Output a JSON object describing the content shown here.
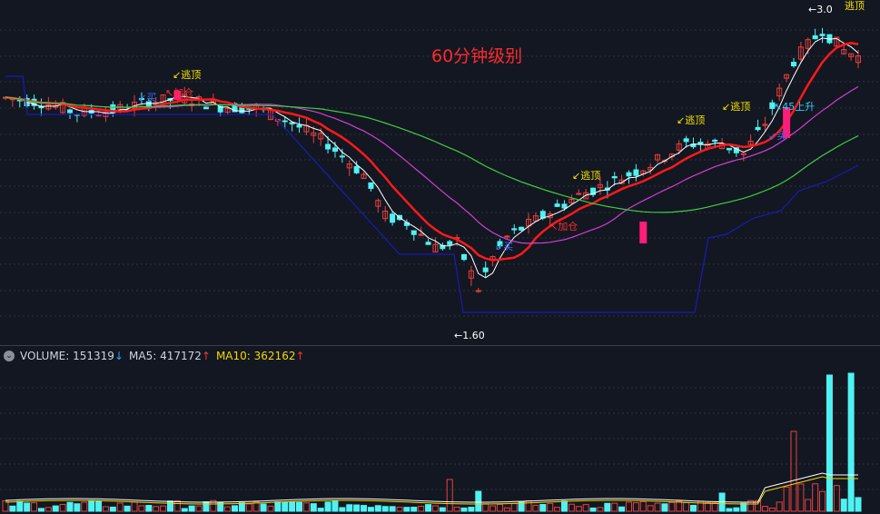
{
  "chart_data": [
    {
      "type": "candlestick",
      "title": "60分钟级别",
      "x_count": 120,
      "ylim": [
        1.45,
        3.08
      ],
      "grid": "dashed horizontal",
      "colors": {
        "up": "#e8413b",
        "down": "#4ff2f2",
        "ma_red": "#ff1a1a",
        "ma_white": "#ffffff",
        "ma_magenta": "#d23fd2",
        "ma_green": "#3fcf3f",
        "ma_blue": "#1b1bb5",
        "signal_bar": "#ff1c7a",
        "annotation_yellow": "#f5e300",
        "annotation_red": "#ff3030",
        "annotation_blue": "#3a6cff",
        "annotation_cyan": "#30d0ff"
      },
      "price_labels": {
        "high": "3.0",
        "low": "1.60"
      },
      "annotations": [
        {
          "text": "↙逃顶",
          "color": "yellow",
          "at_index": 24
        },
        {
          "text": "↖加仓",
          "color": "red",
          "at_index": 24
        },
        {
          "text": "↙买",
          "color": "blue",
          "at_index": 19
        },
        {
          "text": "↙逃顶",
          "color": "yellow",
          "at_index": 79
        },
        {
          "text": "↖加仓",
          "color": "red",
          "at_index": 76
        },
        {
          "text": "↙买",
          "color": "blue",
          "at_index": 68
        },
        {
          "text": "↙逃顶",
          "color": "yellow",
          "at_index": 94
        },
        {
          "text": "↙逃顶",
          "color": "yellow",
          "at_index": 99
        },
        {
          "text": "↖45上升",
          "color": "cyan",
          "at_index": 106
        },
        {
          "text": "↙买",
          "color": "blue",
          "at_index": 105
        },
        {
          "text": "逃顶",
          "color": "yellow",
          "at_index": 117
        }
      ],
      "ma_lines": [
        "white",
        "red",
        "magenta",
        "green",
        "blue"
      ]
    },
    {
      "type": "bar",
      "title": "VOLUME",
      "volume": "151319",
      "ma5": "417172",
      "ma10": "362162",
      "labels": {
        "volume": "VOLUME:",
        "ma5": "MA5:",
        "ma10": "MA10:"
      },
      "arrows": {
        "volume": "↓",
        "ma5": "↑",
        "ma10": "↑"
      }
    }
  ]
}
